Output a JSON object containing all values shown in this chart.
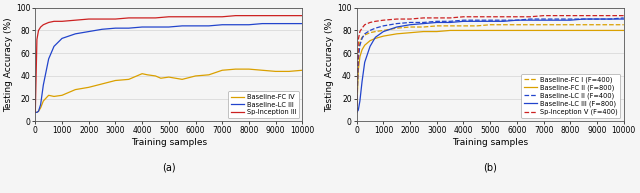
{
  "fig_width": 6.4,
  "fig_height": 1.93,
  "dpi": 100,
  "subplot_a": {
    "xlabel": "Training samples",
    "ylabel": "Testing Accuracy (%)",
    "xlim": [
      0,
      10000
    ],
    "ylim": [
      0,
      100
    ],
    "xticks": [
      0,
      1000,
      2000,
      3000,
      4000,
      5000,
      6000,
      7000,
      8000,
      9000,
      10000
    ],
    "yticks": [
      0,
      20,
      40,
      60,
      80,
      100
    ],
    "label_a": "(a)",
    "series": [
      {
        "label": "Baseline-FC IV",
        "color": "#DAA000",
        "linestyle": "-",
        "linewidth": 0.9,
        "pts_x": [
          0,
          60,
          120,
          200,
          300,
          500,
          700,
          1000,
          1500,
          2000,
          2500,
          3000,
          3500,
          4000,
          4200,
          4500,
          4700,
          5000,
          5500,
          6000,
          6500,
          7000,
          7500,
          8000,
          8500,
          9000,
          9500,
          10000
        ],
        "pts_y": [
          8,
          8,
          9,
          12,
          18,
          23,
          22,
          23,
          28,
          30,
          33,
          36,
          37,
          42,
          41,
          40,
          38,
          39,
          37,
          40,
          41,
          45,
          46,
          46,
          45,
          44,
          44,
          45
        ]
      },
      {
        "label": "Baseline-LC III",
        "color": "#2244CC",
        "linestyle": "-",
        "linewidth": 0.9,
        "pts_x": [
          0,
          60,
          120,
          200,
          300,
          500,
          700,
          1000,
          1500,
          2000,
          2500,
          3000,
          3500,
          4000,
          4500,
          5000,
          5500,
          6000,
          6500,
          7000,
          7500,
          8000,
          8500,
          9000,
          9500,
          10000
        ],
        "pts_y": [
          8,
          8,
          9,
          15,
          32,
          55,
          66,
          73,
          77,
          79,
          81,
          82,
          82,
          83,
          83,
          83,
          84,
          84,
          84,
          85,
          85,
          85,
          86,
          86,
          86,
          86
        ]
      },
      {
        "label": "Sp-Inception III",
        "color": "#CC2222",
        "linestyle": "-",
        "linewidth": 0.9,
        "pts_x": [
          0,
          60,
          120,
          200,
          300,
          500,
          700,
          1000,
          1500,
          2000,
          2500,
          3000,
          3500,
          4000,
          4500,
          5000,
          5500,
          6000,
          6500,
          7000,
          7500,
          8000,
          8500,
          9000,
          9500,
          10000
        ],
        "pts_y": [
          8,
          72,
          80,
          83,
          85,
          87,
          88,
          88,
          89,
          90,
          90,
          90,
          91,
          91,
          91,
          92,
          92,
          92,
          92,
          92,
          93,
          93,
          93,
          93,
          93,
          93
        ]
      }
    ]
  },
  "subplot_b": {
    "xlabel": "Training samples",
    "ylabel": "Testing Accuracy (%)",
    "xlim": [
      0,
      10000
    ],
    "ylim": [
      0,
      100
    ],
    "xticks": [
      0,
      1000,
      2000,
      3000,
      4000,
      5000,
      6000,
      7000,
      8000,
      9000,
      10000
    ],
    "yticks": [
      0,
      20,
      40,
      60,
      80,
      100
    ],
    "label_b": "(b)",
    "series": [
      {
        "label": "Baseline-FC I (F=400)",
        "color": "#DAA000",
        "linestyle": "--",
        "linewidth": 0.9,
        "pts_x": [
          0,
          60,
          120,
          200,
          300,
          500,
          700,
          1000,
          1500,
          2000,
          2500,
          3000,
          3500,
          4000,
          4500,
          5000,
          5500,
          6000,
          6500,
          7000,
          7500,
          8000,
          8500,
          9000,
          9500,
          10000
        ],
        "pts_y": [
          8,
          60,
          70,
          74,
          76,
          78,
          79,
          80,
          82,
          83,
          83,
          84,
          84,
          84,
          84,
          85,
          85,
          85,
          85,
          85,
          85,
          85,
          85,
          85,
          85,
          85
        ]
      },
      {
        "label": "Baseline-FC II (F=800)",
        "color": "#DAA000",
        "linestyle": "-",
        "linewidth": 0.9,
        "pts_x": [
          0,
          60,
          120,
          200,
          300,
          500,
          700,
          1000,
          1500,
          2000,
          2500,
          3000,
          3500,
          4000,
          4500,
          5000,
          5500,
          6000,
          6500,
          7000,
          7500,
          8000,
          8500,
          9000,
          9500,
          10000
        ],
        "pts_y": [
          8,
          45,
          57,
          63,
          67,
          71,
          73,
          75,
          77,
          78,
          79,
          79,
          80,
          80,
          80,
          80,
          80,
          80,
          80,
          80,
          80,
          80,
          80,
          80,
          80,
          80
        ]
      },
      {
        "label": "Baseline-LC II (F=400)",
        "color": "#2244CC",
        "linestyle": "--",
        "linewidth": 0.9,
        "pts_x": [
          0,
          60,
          120,
          200,
          300,
          500,
          700,
          1000,
          1500,
          2000,
          2500,
          3000,
          3500,
          4000,
          4500,
          5000,
          5500,
          6000,
          6500,
          7000,
          7500,
          8000,
          8500,
          9000,
          9500,
          10000
        ],
        "pts_y": [
          8,
          55,
          67,
          73,
          77,
          80,
          82,
          84,
          86,
          87,
          87,
          88,
          88,
          89,
          89,
          89,
          89,
          89,
          90,
          90,
          90,
          90,
          90,
          90,
          90,
          91
        ]
      },
      {
        "label": "Baseline-LC III (F=800)",
        "color": "#2244CC",
        "linestyle": "-",
        "linewidth": 0.9,
        "pts_x": [
          0,
          60,
          120,
          200,
          300,
          500,
          700,
          1000,
          1500,
          2000,
          2500,
          3000,
          3500,
          4000,
          4500,
          5000,
          5500,
          6000,
          6500,
          7000,
          7500,
          8000,
          8500,
          9000,
          9500,
          10000
        ],
        "pts_y": [
          8,
          10,
          18,
          35,
          52,
          66,
          74,
          79,
          83,
          85,
          86,
          87,
          87,
          88,
          88,
          88,
          88,
          89,
          89,
          89,
          89,
          89,
          90,
          90,
          90,
          90
        ]
      },
      {
        "label": "Sp-Inception V (F=400)",
        "color": "#CC2222",
        "linestyle": "--",
        "linewidth": 0.9,
        "pts_x": [
          0,
          60,
          120,
          200,
          300,
          500,
          700,
          1000,
          1500,
          2000,
          2500,
          3000,
          3500,
          4000,
          4500,
          5000,
          5500,
          6000,
          6500,
          7000,
          7500,
          8000,
          8500,
          9000,
          9500,
          10000
        ],
        "pts_y": [
          8,
          72,
          79,
          82,
          85,
          87,
          88,
          89,
          90,
          90,
          91,
          91,
          91,
          92,
          92,
          92,
          92,
          92,
          92,
          93,
          93,
          93,
          93,
          93,
          93,
          93
        ]
      }
    ]
  },
  "axis_fontsize": 6.5,
  "tick_fontsize": 5.5,
  "legend_fontsize": 4.8,
  "caption_fontsize": 7.0
}
